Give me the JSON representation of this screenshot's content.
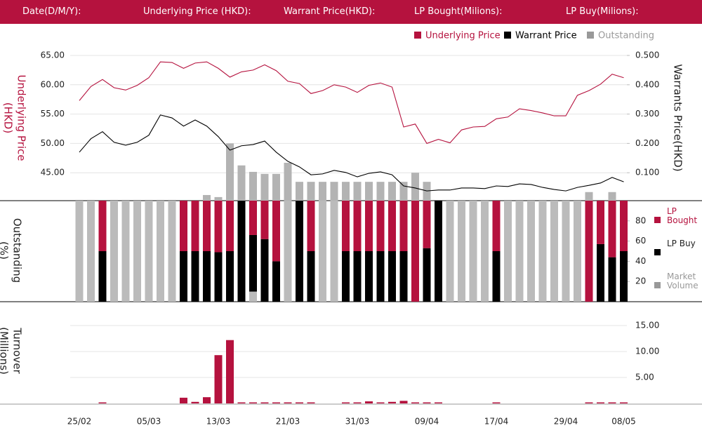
{
  "header": {
    "fields": [
      "Date(D/M/Y):",
      "Underlying Price (HKD):",
      "Warrant  Price(HKD):",
      "LP Bought(Milions):",
      "LP Buy(Milions):"
    ]
  },
  "chart_data": [
    {
      "type": "line",
      "y_label": [
        "Underlying Price",
        "(HKD)"
      ],
      "y2_label": "Warrants  Price(HKD)",
      "ylim": [
        40,
        65
      ],
      "yticks": [
        {
          "value": 45,
          "label": "45.00"
        },
        {
          "value": 50,
          "label": "50.00"
        },
        {
          "value": 55,
          "label": "55.00"
        },
        {
          "value": 60,
          "label": "60.00"
        },
        {
          "value": 65,
          "label": "65.00"
        }
      ],
      "y2lim": [
        0,
        0.5
      ],
      "y2ticks": [
        {
          "value": 0.1,
          "label": "0.100"
        },
        {
          "value": 0.2,
          "label": "0.200"
        },
        {
          "value": 0.3,
          "label": "0.300"
        },
        {
          "value": 0.4,
          "label": "0.400"
        },
        {
          "value": 0.5,
          "label": "0.500"
        }
      ],
      "grid": true,
      "series": [
        {
          "name": "Underlying Price",
          "color": "#b5123e",
          "values": [
            57.3,
            59.7,
            60.9,
            59.5,
            59.1,
            59.9,
            61.2,
            63.9,
            63.8,
            62.8,
            63.7,
            63.9,
            62.8,
            61.3,
            62.2,
            62.5,
            63.4,
            62.4,
            60.6,
            60.2,
            58.5,
            59.0,
            60.0,
            59.6,
            58.7,
            59.9,
            60.3,
            59.6,
            52.8,
            53.3,
            50.0,
            50.7,
            50.1,
            52.3,
            52.8,
            52.9,
            54.2,
            54.5,
            55.9,
            55.6,
            55.2,
            54.7,
            54.7,
            58.2,
            59.0,
            60.1,
            61.8,
            61.2
          ]
        },
        {
          "name": "Warrant  Price",
          "color": "#000000",
          "axis": "y2",
          "values": [
            0.17,
            0.216,
            0.24,
            0.204,
            0.194,
            0.204,
            0.228,
            0.297,
            0.287,
            0.259,
            0.28,
            0.259,
            0.223,
            0.177,
            0.192,
            0.196,
            0.208,
            0.17,
            0.139,
            0.12,
            0.093,
            0.096,
            0.108,
            0.101,
            0.086,
            0.098,
            0.103,
            0.093,
            0.055,
            0.048,
            0.038,
            0.041,
            0.041,
            0.048,
            0.048,
            0.046,
            0.055,
            0.053,
            0.062,
            0.06,
            0.05,
            0.043,
            0.038,
            0.05,
            0.057,
            0.065,
            0.084,
            0.069
          ]
        },
        {
          "name": "Outstanding",
          "color": "#b3b3b3",
          "axis": "y2",
          "type": "bar",
          "values": [
            0,
            0,
            0,
            0,
            0,
            0,
            0,
            0,
            0,
            0,
            0,
            0.024,
            0.017,
            0.2,
            0.125,
            0.103,
            0.096,
            0.096,
            0.134,
            0.069,
            0.069,
            0.069,
            0.069,
            0.069,
            0.069,
            0.069,
            0.069,
            0.069,
            0.069,
            0.1,
            0.069,
            0,
            0,
            0,
            0,
            0,
            0,
            0,
            0,
            0,
            0,
            0,
            0,
            0,
            0.034,
            0,
            0.034,
            0
          ]
        }
      ]
    },
    {
      "type": "stacked_bar",
      "y_label": [
        "Outstanding",
        "(%)"
      ],
      "ylim": [
        0,
        100
      ],
      "yticks": [
        20,
        40,
        60,
        80
      ],
      "series": [
        {
          "name": "LP Bought",
          "color": "#b5123e",
          "values": [
            0,
            0,
            50,
            0,
            0,
            0,
            0,
            0,
            0,
            50,
            50,
            50,
            51,
            50,
            0,
            34,
            38,
            60,
            0,
            0,
            50,
            0,
            0,
            50,
            50,
            50,
            50,
            50,
            50,
            100,
            47,
            0,
            0,
            0,
            0,
            0,
            50,
            0,
            0,
            0,
            0,
            0,
            0,
            0,
            100,
            43,
            56,
            50
          ]
        },
        {
          "name": "LP Buy",
          "color": "#000000",
          "values": [
            0,
            0,
            50,
            0,
            0,
            0,
            0,
            0,
            0,
            50,
            50,
            50,
            49,
            50,
            100,
            56,
            62,
            40,
            0,
            100,
            50,
            0,
            0,
            50,
            50,
            50,
            50,
            50,
            50,
            0,
            53,
            100,
            0,
            0,
            0,
            0,
            50,
            0,
            0,
            0,
            0,
            0,
            0,
            0,
            0,
            57,
            44,
            50
          ]
        },
        {
          "name": "Market Volume",
          "color": "#bbbbbb",
          "values": [
            100,
            100,
            0,
            100,
            100,
            100,
            100,
            100,
            100,
            0,
            0,
            0,
            0,
            0,
            0,
            10,
            0,
            0,
            100,
            0,
            0,
            100,
            100,
            0,
            0,
            0,
            0,
            0,
            0,
            0,
            0,
            0,
            100,
            100,
            100,
            100,
            0,
            100,
            100,
            100,
            100,
            100,
            100,
            100,
            0,
            0,
            0,
            0
          ]
        }
      ]
    },
    {
      "type": "bar",
      "y_label": [
        "Turnover",
        "(Millions)"
      ],
      "ylim": [
        0,
        15
      ],
      "yticks": [
        {
          "value": 5,
          "label": "5.00"
        },
        {
          "value": 10,
          "label": "10.00"
        },
        {
          "value": 15,
          "label": "15.00"
        }
      ],
      "grid": true,
      "color": "#b5123e",
      "categories": [
        "25/02",
        null,
        null,
        null,
        null,
        null,
        "05/03",
        null,
        null,
        null,
        null,
        null,
        "13/03",
        null,
        null,
        null,
        null,
        null,
        "21/03",
        null,
        null,
        null,
        null,
        null,
        "31/03",
        null,
        null,
        null,
        null,
        null,
        "09/04",
        null,
        null,
        null,
        null,
        null,
        "17/04",
        null,
        null,
        null,
        null,
        null,
        "29/04",
        null,
        null,
        null,
        null,
        "08/05"
      ],
      "values": [
        0,
        0,
        0.2,
        0,
        0,
        0,
        0,
        0,
        0,
        1.1,
        0.3,
        1.2,
        9.3,
        12.2,
        0.2,
        0.2,
        0.2,
        0.2,
        0.2,
        0.2,
        0.2,
        0,
        0,
        0.2,
        0.2,
        0.4,
        0.2,
        0.3,
        0.5,
        0.2,
        0.2,
        0.2,
        0,
        0,
        0,
        0,
        0.2,
        0,
        0,
        0,
        0,
        0,
        0,
        0,
        0.2,
        0.2,
        0.2,
        0.2
      ]
    }
  ]
}
